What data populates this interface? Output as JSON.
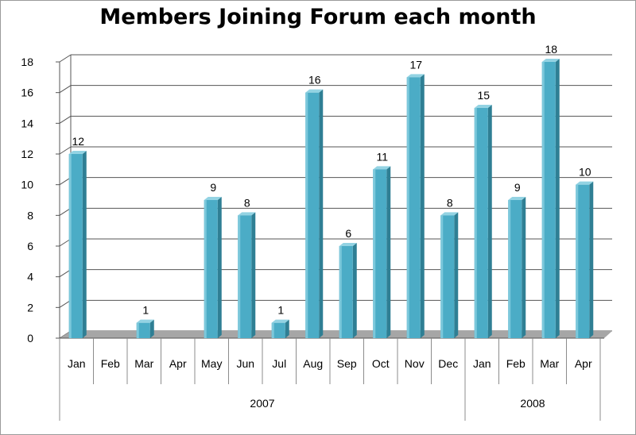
{
  "chart_data": {
    "type": "bar",
    "title": "Members Joining Forum each month",
    "categories": [
      "Jan",
      "Feb",
      "Mar",
      "Apr",
      "May",
      "Jun",
      "Jul",
      "Aug",
      "Sep",
      "Oct",
      "Nov",
      "Dec",
      "Jan",
      "Feb",
      "Mar",
      "Apr"
    ],
    "values": [
      12,
      0,
      1,
      0,
      9,
      8,
      1,
      16,
      6,
      11,
      17,
      8,
      15,
      9,
      18,
      10
    ],
    "data_labels": [
      "12",
      "",
      "1",
      "",
      "9",
      "8",
      "1",
      "16",
      "6",
      "11",
      "17",
      "8",
      "15",
      "9",
      "18",
      "10"
    ],
    "groups": [
      {
        "label": "2007",
        "count": 12
      },
      {
        "label": "2008",
        "count": 4
      }
    ],
    "ylim": [
      0,
      18
    ],
    "yticks": [
      0,
      2,
      4,
      6,
      8,
      10,
      12,
      14,
      16,
      18
    ],
    "grid": true,
    "legend": "none",
    "bar_color": "#4BACC6",
    "xlabel": "",
    "ylabel": ""
  }
}
